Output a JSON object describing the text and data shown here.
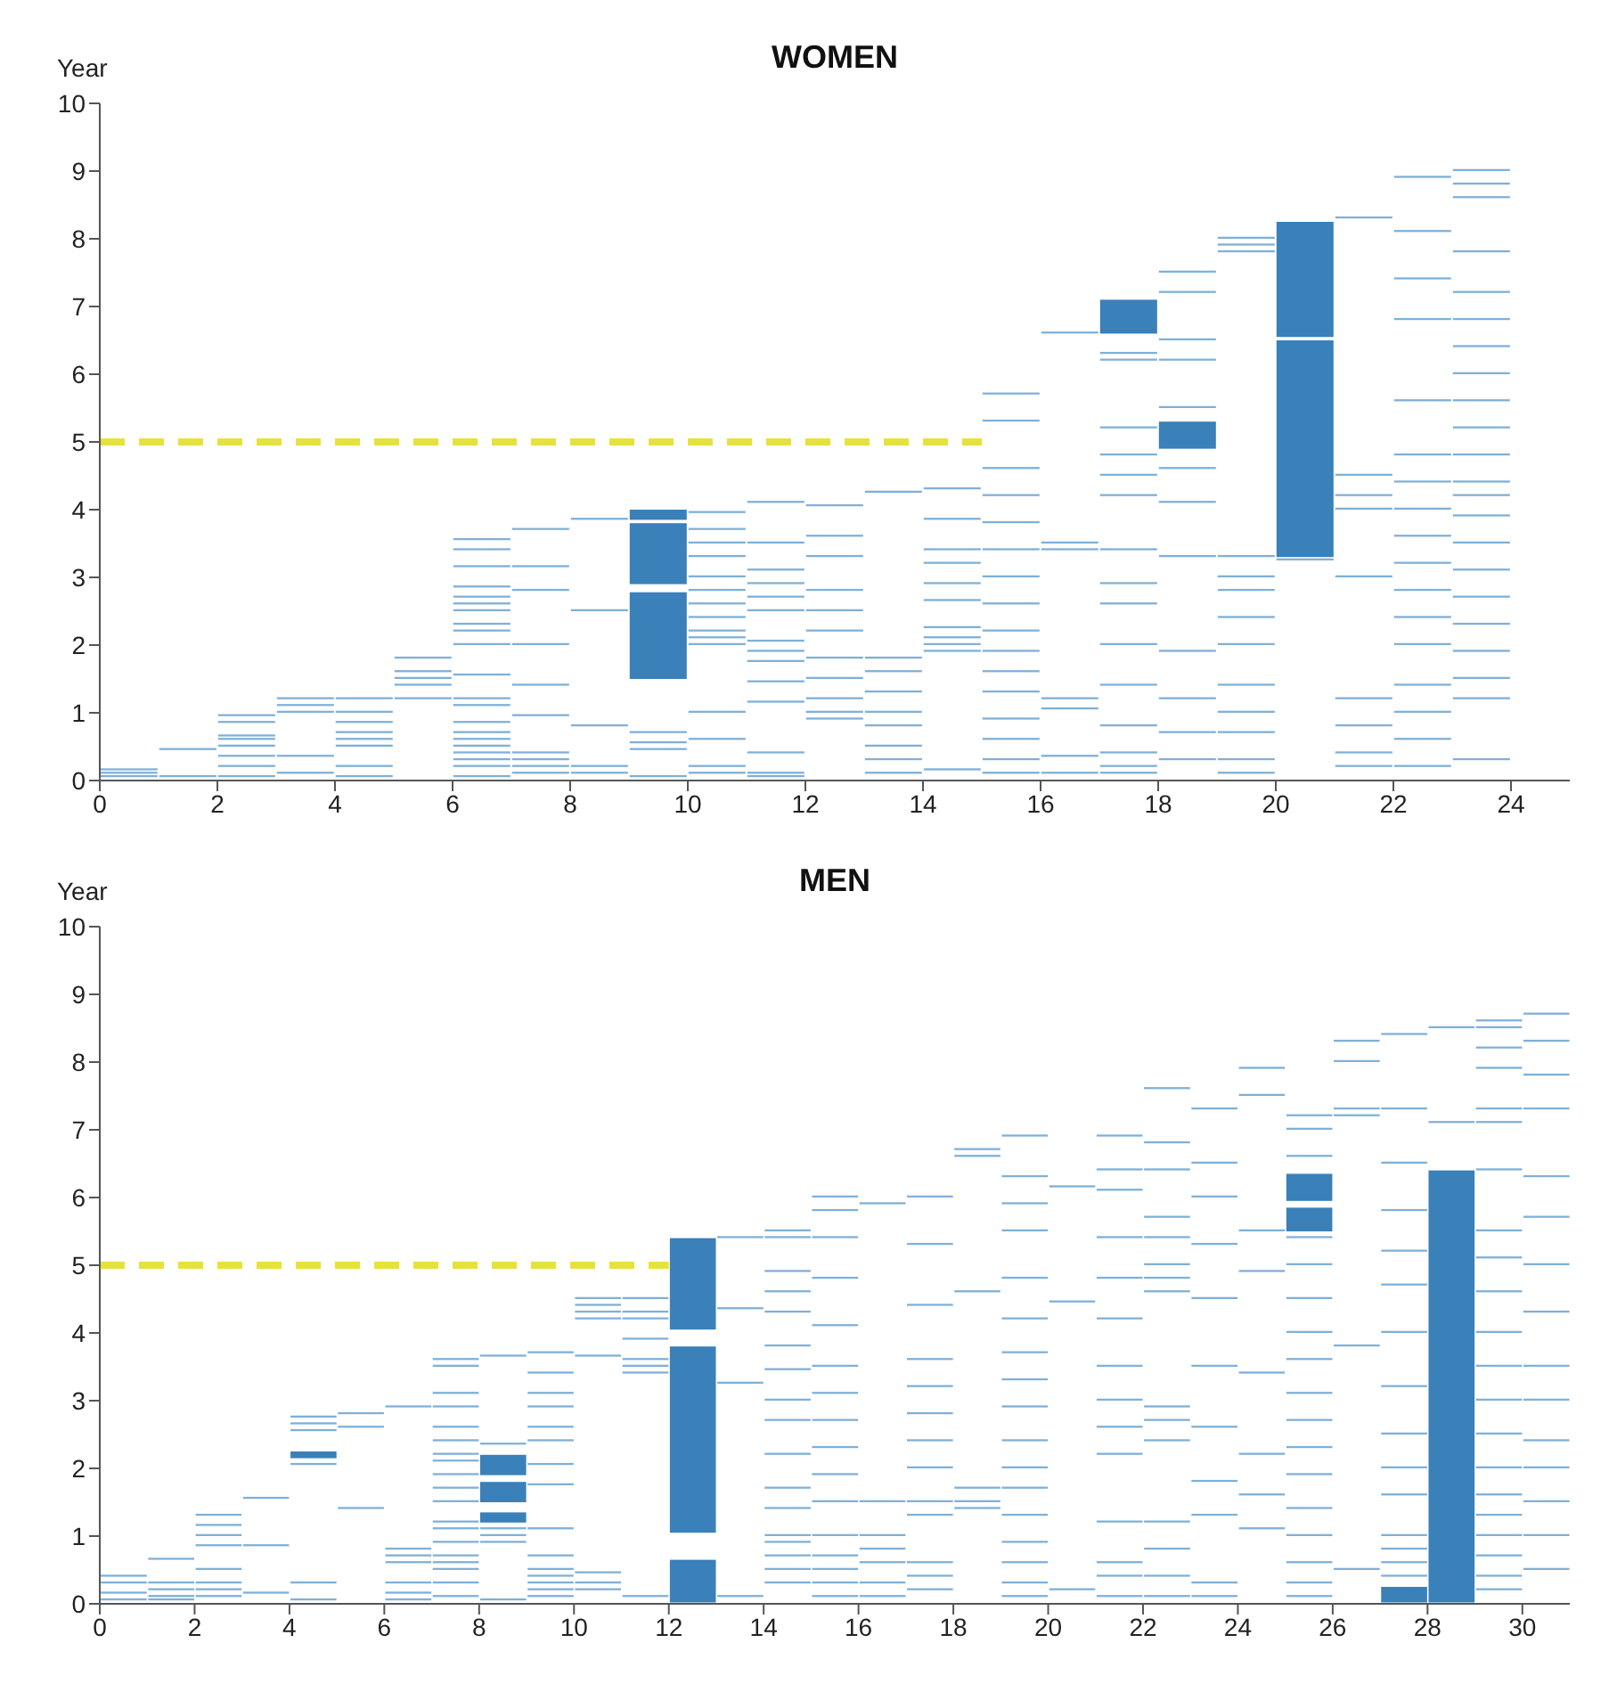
{
  "chart_data": [
    {
      "type": "bar",
      "title": "WOMEN",
      "ylabel": "Year",
      "xlim": [
        0,
        25
      ],
      "xticks": [
        0,
        2,
        4,
        6,
        8,
        10,
        12,
        14,
        16,
        18,
        20,
        22,
        24
      ],
      "ylim": [
        0,
        10
      ],
      "yticks": [
        0,
        1,
        2,
        3,
        4,
        5,
        6,
        7,
        8,
        9,
        10
      ],
      "series": [
        {
          "color": "#7fb0d8",
          "x": [
            0.5,
            1.5,
            2.5,
            3.5,
            4.5,
            5.5,
            6.5,
            7.5,
            8.5,
            9.5,
            10.5,
            11.5,
            12.5,
            13.5,
            14.5,
            15.5,
            16.5,
            17.5,
            18.5,
            19.5,
            20.5,
            21.5,
            22.5,
            23.5
          ],
          "base": [
            0.05,
            0.05,
            0.05,
            0.1,
            0.05,
            1.2,
            0.05,
            0.1,
            0.1,
            0.05,
            0.1,
            0.05,
            0.9,
            0.1,
            0.15,
            0.1,
            0.1,
            0.1,
            0.3,
            0.1,
            3.25,
            0.2,
            0.2,
            0.3
          ],
          "values": [
            0.03,
            0.03,
            0.03,
            0.03,
            0.03,
            0.03,
            0.03,
            0.03,
            0.03,
            0.03,
            0.03,
            0.03,
            0.03,
            0.03,
            0.03,
            0.03,
            0.03,
            0.03,
            0.03,
            0.03,
            0.03,
            0.03,
            0.03,
            0.03
          ]
        },
        {
          "color": "#7fb0d8",
          "x": [
            0.5,
            1.5,
            2.5,
            3.5,
            4.5,
            5.5,
            6.5,
            7.5,
            8.5,
            9.5,
            10.5,
            11.5,
            12.5,
            13.5,
            14.5,
            15.5,
            16.5,
            17.5,
            18.5,
            19.5,
            21.5,
            22.5,
            23.5
          ],
          "base": [
            0.1,
            0.45,
            0.2,
            0.35,
            0.2,
            1.4,
            0.2,
            0.2,
            0.2,
            0.45,
            0.2,
            0.1,
            1.0,
            0.3,
            1.9,
            0.3,
            0.35,
            0.2,
            0.7,
            0.3,
            0.4,
            0.6,
            1.2
          ],
          "values": [
            0.03,
            0.03,
            0.03,
            0.03,
            0.03,
            0.03,
            0.03,
            0.03,
            0.03,
            0.03,
            0.03,
            0.03,
            0.03,
            0.03,
            0.03,
            0.03,
            0.03,
            0.03,
            0.03,
            0.03,
            0.03,
            0.03,
            0.03
          ]
        },
        {
          "color": "#7fb0d8",
          "x": [
            0.5,
            2.5,
            3.5,
            4.5,
            5.5,
            6.5,
            7.5,
            8.5,
            9.5,
            10.5,
            11.5,
            12.5,
            13.5,
            14.5,
            15.5,
            16.5,
            17.5,
            18.5,
            19.5,
            21.5,
            22.5,
            23.5
          ],
          "base": [
            0.15,
            0.35,
            1.0,
            0.5,
            1.5,
            0.3,
            0.3,
            0.8,
            0.55,
            0.6,
            0.4,
            1.2,
            0.5,
            2.0,
            0.6,
            1.05,
            0.4,
            1.2,
            0.7,
            0.8,
            1.0,
            1.5
          ],
          "values": [
            0.03,
            0.03,
            0.03,
            0.03,
            0.03,
            0.03,
            0.03,
            0.03,
            0.03,
            0.03,
            0.03,
            0.03,
            0.03,
            0.03,
            0.03,
            0.03,
            0.03,
            0.03,
            0.03,
            0.03,
            0.03,
            0.03
          ]
        },
        {
          "color": "#7fb0d8",
          "x": [
            2.5,
            3.5,
            4.5,
            5.5,
            6.5,
            7.5,
            8.5,
            9.5,
            10.5,
            11.5,
            12.5,
            13.5,
            14.5,
            15.5,
            16.5,
            17.5,
            18.5,
            19.5,
            21.5,
            22.5,
            23.5
          ],
          "base": [
            0.5,
            1.1,
            0.6,
            1.6,
            0.4,
            0.4,
            2.5,
            0.7,
            1.0,
            1.15,
            1.5,
            0.8,
            2.1,
            0.9,
            1.2,
            0.8,
            1.9,
            1.0,
            1.2,
            1.4,
            1.9
          ],
          "values": [
            0.03,
            0.03,
            0.03,
            0.03,
            0.03,
            0.03,
            0.03,
            0.03,
            0.03,
            0.03,
            0.03,
            0.03,
            0.03,
            0.03,
            0.03,
            0.03,
            0.03,
            0.03,
            0.03,
            0.03,
            0.03
          ]
        },
        {
          "color": "#7fb0d8",
          "x": [
            2.5,
            3.5,
            4.5,
            5.5,
            6.5,
            7.5,
            8.5,
            10.5,
            11.5,
            12.5,
            13.5,
            14.5,
            15.5,
            16.5,
            17.5,
            18.5,
            19.5,
            21.5,
            22.5,
            23.5
          ],
          "base": [
            0.6,
            1.2,
            0.7,
            1.8,
            0.5,
            0.95,
            3.85,
            2.0,
            1.45,
            1.8,
            1.0,
            2.25,
            1.3,
            3.4,
            1.4,
            3.3,
            1.4,
            3.0,
            2.0,
            2.3
          ],
          "values": [
            0.03,
            0.03,
            0.03,
            0.03,
            0.03,
            0.03,
            0.03,
            0.03,
            0.03,
            0.03,
            0.03,
            0.03,
            0.03,
            0.03,
            0.03,
            0.03,
            0.03,
            0.03,
            0.03,
            0.03
          ]
        },
        {
          "color": "#7fb0d8",
          "x": [
            2.5,
            4.5,
            6.5,
            7.5,
            10.5,
            11.5,
            12.5,
            13.5,
            14.5,
            15.5,
            16.5,
            17.5,
            18.5,
            19.5,
            21.5,
            22.5,
            23.5
          ],
          "base": [
            0.65,
            0.85,
            0.6,
            1.4,
            2.1,
            1.75,
            2.2,
            1.3,
            2.65,
            1.6,
            3.5,
            2.0,
            4.1,
            2.0,
            4.0,
            2.4,
            2.7
          ],
          "values": [
            0.03,
            0.03,
            0.03,
            0.03,
            0.03,
            0.03,
            0.03,
            0.03,
            0.03,
            0.03,
            0.03,
            0.03,
            0.03,
            0.03,
            0.03,
            0.03,
            0.03
          ]
        },
        {
          "color": "#7fb0d8",
          "x": [
            2.5,
            4.5,
            6.5,
            7.5,
            10.5,
            11.5,
            12.5,
            13.5,
            14.5,
            15.5,
            16.5,
            17.5,
            18.5,
            19.5,
            21.5,
            22.5,
            23.5
          ],
          "base": [
            0.85,
            1.0,
            0.7,
            2.0,
            2.2,
            1.9,
            2.5,
            1.6,
            2.9,
            1.9,
            6.6,
            2.6,
            4.6,
            2.4,
            4.2,
            2.8,
            3.1
          ],
          "values": [
            0.03,
            0.03,
            0.03,
            0.03,
            0.03,
            0.03,
            0.03,
            0.03,
            0.03,
            0.03,
            0.03,
            0.03,
            0.03,
            0.03,
            0.03,
            0.03,
            0.03
          ]
        },
        {
          "color": "#7fb0d8",
          "x": [
            2.5,
            4.5,
            6.5,
            7.5,
            10.5,
            11.5,
            12.5,
            13.5,
            14.5,
            15.5,
            17.5,
            18.5,
            19.5,
            21.5,
            22.5,
            23.5
          ],
          "base": [
            0.95,
            1.2,
            0.85,
            2.8,
            2.4,
            2.05,
            2.8,
            1.8,
            3.2,
            2.2,
            2.9,
            5.5,
            2.8,
            4.5,
            3.2,
            3.5
          ],
          "values": [
            0.03,
            0.03,
            0.03,
            0.03,
            0.03,
            0.03,
            0.03,
            0.03,
            0.03,
            0.03,
            0.03,
            0.03,
            0.03,
            0.03,
            0.03,
            0.03
          ]
        },
        {
          "color": "#7fb0d8",
          "x": [
            6.5,
            7.5,
            10.5,
            11.5,
            12.5,
            13.5,
            14.5,
            15.5,
            17.5,
            18.5,
            19.5,
            21.5,
            22.5,
            23.5
          ],
          "base": [
            1.1,
            3.15,
            2.6,
            2.5,
            3.3,
            4.25,
            3.4,
            2.6,
            3.4,
            6.2,
            3.0,
            8.3,
            3.6,
            3.9
          ],
          "values": [
            0.03,
            0.03,
            0.03,
            0.03,
            0.03,
            0.03,
            0.03,
            0.03,
            0.03,
            0.03,
            0.03,
            0.03,
            0.03,
            0.03
          ]
        },
        {
          "color": "#7fb0d8",
          "x": [
            6.5,
            7.5,
            10.5,
            11.5,
            12.5,
            14.5,
            15.5,
            17.5,
            18.5,
            19.5,
            22.5,
            23.5
          ],
          "base": [
            1.2,
            3.7,
            2.8,
            2.7,
            3.6,
            3.85,
            3.0,
            4.2,
            6.5,
            3.3,
            4.0,
            4.2
          ],
          "values": [
            0.03,
            0.03,
            0.03,
            0.03,
            0.03,
            0.03,
            0.03,
            0.03,
            0.03,
            0.03,
            0.03,
            0.03
          ]
        },
        {
          "color": "#7fb0d8",
          "x": [
            6.5,
            10.5,
            11.5,
            12.5,
            14.5,
            15.5,
            17.5,
            18.5,
            19.5,
            22.5,
            23.5
          ],
          "base": [
            1.55,
            3.0,
            2.9,
            4.05,
            4.3,
            3.4,
            4.5,
            7.2,
            7.8,
            4.4,
            4.4
          ],
          "values": [
            0.03,
            0.03,
            0.03,
            0.03,
            0.03,
            0.03,
            0.03,
            0.03,
            0.03,
            0.03,
            0.03
          ]
        },
        {
          "color": "#7fb0d8",
          "x": [
            6.5,
            10.5,
            11.5,
            15.5,
            17.5,
            18.5,
            19.5,
            22.5,
            23.5
          ],
          "base": [
            2.0,
            3.3,
            3.1,
            3.8,
            4.8,
            7.5,
            7.9,
            4.8,
            4.8
          ],
          "values": [
            0.03,
            0.03,
            0.03,
            0.03,
            0.03,
            0.03,
            0.03,
            0.03,
            0.03
          ]
        },
        {
          "color": "#7fb0d8",
          "x": [
            6.5,
            10.5,
            11.5,
            15.5,
            17.5,
            19.5,
            22.5,
            23.5
          ],
          "base": [
            2.2,
            3.5,
            3.5,
            4.2,
            5.2,
            8.0,
            5.6,
            5.2
          ],
          "values": [
            0.03,
            0.03,
            0.03,
            0.03,
            0.03,
            0.03,
            0.03,
            0.03
          ]
        },
        {
          "color": "#7fb0d8",
          "x": [
            6.5,
            10.5,
            11.5,
            15.5,
            17.5,
            22.5,
            23.5
          ],
          "base": [
            2.3,
            3.7,
            4.1,
            4.6,
            6.2,
            6.8,
            5.6
          ],
          "values": [
            0.03,
            0.03,
            0.03,
            0.03,
            0.03,
            0.03,
            0.03
          ]
        },
        {
          "color": "#7fb0d8",
          "x": [
            6.5,
            10.5,
            15.5,
            17.5,
            22.5,
            23.5
          ],
          "base": [
            2.5,
            3.95,
            5.3,
            6.3,
            7.4,
            6.0
          ],
          "values": [
            0.03,
            0.03,
            0.03,
            0.03,
            0.03,
            0.03
          ]
        },
        {
          "color": "#7fb0d8",
          "x": [
            6.5,
            15.5,
            22.5,
            23.5
          ],
          "base": [
            2.6,
            5.7,
            8.1,
            6.4
          ],
          "values": [
            0.03,
            0.03,
            0.03,
            0.03
          ]
        },
        {
          "color": "#7fb0d8",
          "x": [
            6.5,
            22.5,
            23.5
          ],
          "base": [
            2.7,
            8.9,
            6.8
          ],
          "values": [
            0.03,
            0.03,
            0.03
          ]
        },
        {
          "color": "#7fb0d8",
          "x": [
            6.5,
            23.5
          ],
          "base": [
            2.85,
            7.2
          ],
          "values": [
            0.03,
            0.03
          ]
        },
        {
          "color": "#7fb0d8",
          "x": [
            6.5,
            23.5
          ],
          "base": [
            3.15,
            7.8
          ],
          "values": [
            0.03,
            0.03
          ]
        },
        {
          "color": "#7fb0d8",
          "x": [
            6.5,
            23.5
          ],
          "base": [
            3.4,
            8.6
          ],
          "values": [
            0.03,
            0.03
          ]
        },
        {
          "color": "#7fb0d8",
          "x": [
            6.5,
            23.5
          ],
          "base": [
            3.55,
            8.8
          ],
          "values": [
            0.03,
            0.03
          ]
        },
        {
          "color": "#7fb0d8",
          "x": [
            23.5
          ],
          "base": [
            9.0
          ],
          "values": [
            0.03
          ]
        },
        {
          "color": "#3a80b9",
          "x": [
            9.5,
            17.5,
            18.5,
            20.5
          ],
          "base": [
            1.5,
            6.6,
            4.9,
            3.3
          ],
          "values": [
            1.28,
            0.5,
            0.4,
            3.2
          ]
        },
        {
          "color": "#3a80b9",
          "x": [
            9.5,
            20.5
          ],
          "base": [
            2.9,
            6.55
          ],
          "values": [
            0.9,
            1.7
          ]
        },
        {
          "color": "#3a80b9",
          "x": [
            9.5
          ],
          "base": [
            3.85
          ],
          "values": [
            0.15
          ]
        },
        {
          "type": "line",
          "color": "#e6e23c",
          "line_style": "dashed",
          "marker": "none",
          "x": [
            0,
            15
          ],
          "values": [
            5,
            5
          ]
        }
      ]
    },
    {
      "type": "bar",
      "title": "MEN",
      "ylabel": "Year",
      "xlim": [
        0,
        31
      ],
      "xticks": [
        0,
        2,
        4,
        6,
        8,
        10,
        12,
        14,
        16,
        18,
        20,
        22,
        24,
        26,
        28,
        30
      ],
      "ylim": [
        0,
        10
      ],
      "yticks": [
        0,
        1,
        2,
        3,
        4,
        5,
        6,
        7,
        8,
        9,
        10
      ],
      "series": [
        {
          "color": "#7fb0d8",
          "x": [
            0.5,
            1.5,
            2.5,
            3.5,
            4.5,
            5.5,
            6.5,
            7.5,
            8.5,
            9.5,
            10.5,
            11.5,
            13.5,
            14.5,
            15.5,
            16.5,
            17.5,
            18.5,
            19.5,
            20.5,
            21.5,
            22.5,
            23.5,
            24.5,
            25.5,
            26.5,
            27.5,
            28.5,
            29.5,
            30.5
          ],
          "base": [
            0.05,
            0.05,
            0.1,
            0.15,
            0.05,
            1.4,
            0.05,
            0.1,
            0.05,
            0.1,
            0.2,
            0.1,
            0.1,
            0.3,
            0.1,
            0.1,
            0.2,
            1.4,
            0.1,
            0.2,
            0.1,
            0.1,
            0.1,
            1.1,
            0.1,
            0.5,
            0.4,
            7.1,
            0.2,
            0.5
          ],
          "values": [
            0.03,
            0.03,
            0.03,
            0.03,
            0.03,
            0.03,
            0.03,
            0.03,
            0.03,
            0.03,
            0.03,
            0.03,
            0.03,
            0.03,
            0.03,
            0.03,
            0.03,
            0.03,
            0.03,
            0.03,
            0.03,
            0.03,
            0.03,
            0.03,
            0.03,
            0.03,
            0.03,
            0.03,
            0.03,
            0.03
          ]
        },
        {
          "color": "#7fb0d8",
          "x": [
            0.5,
            1.5,
            2.5,
            3.5,
            4.5,
            5.5,
            6.5,
            7.5,
            8.5,
            9.5,
            10.5,
            11.5,
            13.5,
            14.5,
            15.5,
            16.5,
            17.5,
            18.5,
            19.5,
            20.5,
            21.5,
            22.5,
            23.5,
            24.5,
            25.5,
            26.5,
            27.5,
            28.5,
            29.5,
            30.5
          ],
          "base": [
            0.15,
            0.1,
            0.2,
            0.85,
            0.3,
            2.6,
            0.15,
            0.3,
            0.9,
            0.2,
            0.3,
            3.4,
            3.25,
            0.5,
            0.3,
            0.3,
            0.4,
            1.5,
            0.3,
            4.45,
            0.4,
            0.4,
            0.3,
            1.6,
            0.3,
            3.8,
            0.6,
            8.5,
            0.4,
            1.0
          ],
          "values": [
            0.03,
            0.03,
            0.03,
            0.03,
            0.03,
            0.03,
            0.03,
            0.03,
            0.03,
            0.03,
            0.03,
            0.03,
            0.03,
            0.03,
            0.03,
            0.03,
            0.03,
            0.03,
            0.03,
            0.03,
            0.03,
            0.03,
            0.03,
            0.03,
            0.03,
            0.03,
            0.03,
            0.03,
            0.03,
            0.03
          ]
        },
        {
          "color": "#7fb0d8",
          "x": [
            0.5,
            1.5,
            2.5,
            3.5,
            4.5,
            5.5,
            6.5,
            7.5,
            8.5,
            9.5,
            10.5,
            11.5,
            13.5,
            14.5,
            15.5,
            16.5,
            17.5,
            18.5,
            19.5,
            20.5,
            21.5,
            22.5,
            23.5,
            24.5,
            25.5,
            26.5,
            27.5,
            29.5,
            30.5
          ],
          "base": [
            0.3,
            0.2,
            0.3,
            1.55,
            2.05,
            2.8,
            0.3,
            0.5,
            1.0,
            0.3,
            0.45,
            3.5,
            4.35,
            0.7,
            0.5,
            0.6,
            0.6,
            1.7,
            0.6,
            6.15,
            0.6,
            0.8,
            1.3,
            2.2,
            0.6,
            7.2,
            0.8,
            0.7,
            1.5
          ],
          "values": [
            0.03,
            0.03,
            0.03,
            0.03,
            0.03,
            0.03,
            0.03,
            0.03,
            0.03,
            0.03,
            0.03,
            0.03,
            0.03,
            0.03,
            0.03,
            0.03,
            0.03,
            0.03,
            0.03,
            0.03,
            0.03,
            0.03,
            0.03,
            0.03,
            0.03,
            0.03,
            0.03,
            0.03,
            0.03
          ]
        },
        {
          "color": "#7fb0d8",
          "x": [
            0.5,
            1.5,
            2.5,
            4.5,
            6.5,
            7.5,
            8.5,
            9.5,
            10.5,
            11.5,
            13.5,
            14.5,
            15.5,
            16.5,
            17.5,
            18.5,
            19.5,
            21.5,
            22.5,
            23.5,
            24.5,
            25.5,
            26.5,
            27.5,
            29.5,
            30.5
          ],
          "base": [
            0.4,
            0.3,
            0.5,
            2.55,
            0.6,
            0.6,
            1.1,
            0.4,
            3.65,
            3.6,
            5.4,
            0.9,
            0.7,
            0.8,
            1.3,
            4.6,
            0.9,
            1.2,
            1.2,
            1.8,
            3.4,
            1.0,
            7.3,
            1.0,
            1.0,
            2.0
          ],
          "values": [
            0.03,
            0.03,
            0.03,
            0.03,
            0.03,
            0.03,
            0.03,
            0.03,
            0.03,
            0.03,
            0.03,
            0.03,
            0.03,
            0.03,
            0.03,
            0.03,
            0.03,
            0.03,
            0.03,
            0.03,
            0.03,
            0.03,
            0.03,
            0.03,
            0.03,
            0.03
          ]
        },
        {
          "color": "#7fb0d8",
          "x": [
            1.5,
            2.5,
            4.5,
            6.5,
            7.5,
            8.5,
            9.5,
            10.5,
            11.5,
            14.5,
            15.5,
            16.5,
            17.5,
            18.5,
            19.5,
            21.5,
            22.5,
            23.5,
            24.5,
            25.5,
            26.5,
            27.5,
            29.5,
            30.5
          ],
          "base": [
            0.65,
            0.85,
            2.65,
            0.7,
            0.7,
            2.35,
            0.5,
            4.2,
            3.9,
            1.0,
            1.0,
            1.0,
            1.5,
            6.6,
            1.3,
            2.2,
            2.4,
            2.6,
            4.9,
            1.4,
            8.0,
            1.6,
            1.3,
            2.4
          ],
          "values": [
            0.03,
            0.03,
            0.03,
            0.03,
            0.03,
            0.03,
            0.03,
            0.03,
            0.03,
            0.03,
            0.03,
            0.03,
            0.03,
            0.03,
            0.03,
            0.03,
            0.03,
            0.03,
            0.03,
            0.03,
            0.03,
            0.03,
            0.03,
            0.03
          ]
        },
        {
          "color": "#7fb0d8",
          "x": [
            2.5,
            4.5,
            6.5,
            7.5,
            8.5,
            9.5,
            10.5,
            11.5,
            14.5,
            15.5,
            16.5,
            17.5,
            18.5,
            19.5,
            21.5,
            22.5,
            23.5,
            24.5,
            25.5,
            26.5,
            27.5,
            29.5,
            30.5
          ],
          "base": [
            1.0,
            2.75,
            0.8,
            0.9,
            3.65,
            0.7,
            4.3,
            4.2,
            1.4,
            1.5,
            1.5,
            2.0,
            6.7,
            1.7,
            2.6,
            2.7,
            3.5,
            5.5,
            1.9,
            8.3,
            2.0,
            1.6,
            3.0
          ],
          "values": [
            0.03,
            0.03,
            0.03,
            0.03,
            0.03,
            0.03,
            0.03,
            0.03,
            0.03,
            0.03,
            0.03,
            0.03,
            0.03,
            0.03,
            0.03,
            0.03,
            0.03,
            0.03,
            0.03,
            0.03,
            0.03,
            0.03,
            0.03
          ]
        },
        {
          "color": "#7fb0d8",
          "x": [
            2.5,
            6.5,
            7.5,
            9.5,
            10.5,
            11.5,
            14.5,
            15.5,
            16.5,
            17.5,
            19.5,
            21.5,
            22.5,
            23.5,
            24.5,
            25.5,
            27.5,
            29.5,
            30.5
          ],
          "base": [
            1.15,
            2.9,
            1.1,
            1.1,
            4.4,
            4.3,
            1.7,
            1.9,
            5.9,
            2.4,
            2.0,
            3.0,
            2.9,
            4.5,
            7.5,
            2.3,
            2.5,
            2.0,
            3.5
          ],
          "values": [
            0.03,
            0.03,
            0.03,
            0.03,
            0.03,
            0.03,
            0.03,
            0.03,
            0.03,
            0.03,
            0.03,
            0.03,
            0.03,
            0.03,
            0.03,
            0.03,
            0.03,
            0.03,
            0.03
          ]
        },
        {
          "color": "#7fb0d8",
          "x": [
            2.5,
            7.5,
            9.5,
            10.5,
            11.5,
            14.5,
            15.5,
            17.5,
            19.5,
            21.5,
            22.5,
            23.5,
            24.5,
            25.5,
            27.5,
            29.5,
            30.5
          ],
          "base": [
            1.3,
            1.2,
            1.75,
            4.5,
            4.5,
            2.2,
            2.3,
            2.8,
            2.4,
            3.5,
            4.6,
            5.3,
            7.9,
            2.7,
            3.2,
            2.5,
            4.3
          ],
          "values": [
            0.03,
            0.03,
            0.03,
            0.03,
            0.03,
            0.03,
            0.03,
            0.03,
            0.03,
            0.03,
            0.03,
            0.03,
            0.03,
            0.03,
            0.03,
            0.03,
            0.03
          ]
        },
        {
          "color": "#7fb0d8",
          "x": [
            7.5,
            9.5,
            14.5,
            15.5,
            17.5,
            19.5,
            21.5,
            22.5,
            23.5,
            25.5,
            27.5,
            29.5,
            30.5
          ],
          "base": [
            1.5,
            2.05,
            2.7,
            2.7,
            3.2,
            2.9,
            4.2,
            4.8,
            6.0,
            3.1,
            4.0,
            3.0,
            5.0
          ],
          "values": [
            0.03,
            0.03,
            0.03,
            0.03,
            0.03,
            0.03,
            0.03,
            0.03,
            0.03,
            0.03,
            0.03,
            0.03,
            0.03
          ]
        },
        {
          "color": "#7fb0d8",
          "x": [
            7.5,
            9.5,
            14.5,
            15.5,
            17.5,
            19.5,
            21.5,
            22.5,
            23.5,
            25.5,
            27.5,
            29.5,
            30.5
          ],
          "base": [
            1.7,
            2.4,
            3.0,
            3.1,
            3.6,
            3.3,
            4.8,
            5.0,
            6.5,
            3.6,
            4.7,
            3.5,
            5.7
          ],
          "values": [
            0.03,
            0.03,
            0.03,
            0.03,
            0.03,
            0.03,
            0.03,
            0.03,
            0.03,
            0.03,
            0.03,
            0.03,
            0.03
          ]
        },
        {
          "color": "#7fb0d8",
          "x": [
            7.5,
            9.5,
            14.5,
            15.5,
            17.5,
            19.5,
            21.5,
            22.5,
            23.5,
            25.5,
            27.5,
            29.5,
            30.5
          ],
          "base": [
            1.9,
            2.6,
            3.45,
            3.5,
            4.4,
            3.7,
            5.4,
            5.4,
            7.3,
            4.0,
            5.2,
            4.0,
            6.3
          ],
          "values": [
            0.03,
            0.03,
            0.03,
            0.03,
            0.03,
            0.03,
            0.03,
            0.03,
            0.03,
            0.03,
            0.03,
            0.03,
            0.03
          ]
        },
        {
          "color": "#7fb0d8",
          "x": [
            7.5,
            9.5,
            14.5,
            15.5,
            17.5,
            19.5,
            21.5,
            22.5,
            25.5,
            27.5,
            29.5,
            30.5
          ],
          "base": [
            2.1,
            2.9,
            3.8,
            4.1,
            5.3,
            4.2,
            6.1,
            5.7,
            4.5,
            5.8,
            4.6,
            7.3
          ],
          "values": [
            0.03,
            0.03,
            0.03,
            0.03,
            0.03,
            0.03,
            0.03,
            0.03,
            0.03,
            0.03,
            0.03,
            0.03
          ]
        },
        {
          "color": "#7fb0d8",
          "x": [
            7.5,
            9.5,
            14.5,
            15.5,
            17.5,
            19.5,
            21.5,
            22.5,
            25.5,
            27.5,
            29.5,
            30.5
          ],
          "base": [
            2.2,
            3.1,
            4.3,
            4.8,
            6.0,
            4.8,
            6.4,
            6.4,
            5.0,
            6.5,
            5.1,
            7.8
          ],
          "values": [
            0.03,
            0.03,
            0.03,
            0.03,
            0.03,
            0.03,
            0.03,
            0.03,
            0.03,
            0.03,
            0.03,
            0.03
          ]
        },
        {
          "color": "#7fb0d8",
          "x": [
            7.5,
            9.5,
            14.5,
            15.5,
            19.5,
            21.5,
            22.5,
            25.5,
            27.5,
            29.5,
            30.5
          ],
          "base": [
            2.4,
            3.4,
            4.6,
            5.4,
            5.5,
            6.9,
            6.8,
            5.4,
            7.3,
            5.5,
            8.3
          ],
          "values": [
            0.03,
            0.03,
            0.03,
            0.03,
            0.03,
            0.03,
            0.03,
            0.03,
            0.03,
            0.03,
            0.03
          ]
        },
        {
          "color": "#7fb0d8",
          "x": [
            7.5,
            9.5,
            14.5,
            15.5,
            19.5,
            22.5,
            25.5,
            27.5,
            29.5,
            30.5
          ],
          "base": [
            2.6,
            3.7,
            4.9,
            5.8,
            5.9,
            7.6,
            6.6,
            8.4,
            6.4,
            8.7
          ],
          "values": [
            0.03,
            0.03,
            0.03,
            0.03,
            0.03,
            0.03,
            0.03,
            0.03,
            0.03,
            0.03
          ]
        },
        {
          "color": "#7fb0d8",
          "x": [
            7.5,
            14.5,
            15.5,
            19.5,
            25.5,
            29.5
          ],
          "base": [
            2.9,
            5.4,
            6.0,
            6.3,
            7.0,
            7.1
          ],
          "values": [
            0.03,
            0.03,
            0.03,
            0.03,
            0.03,
            0.03
          ]
        },
        {
          "color": "#7fb0d8",
          "x": [
            7.5,
            14.5,
            19.5,
            25.5,
            29.5
          ],
          "base": [
            3.1,
            5.5,
            6.9,
            7.2,
            7.3
          ],
          "values": [
            0.03,
            0.03,
            0.03,
            0.03,
            0.03
          ]
        },
        {
          "color": "#7fb0d8",
          "x": [
            7.5,
            29.5
          ],
          "base": [
            3.5,
            7.9
          ],
          "values": [
            0.03,
            0.03
          ]
        },
        {
          "color": "#7fb0d8",
          "x": [
            7.5,
            29.5
          ],
          "base": [
            3.6,
            8.2
          ],
          "values": [
            0.03,
            0.03
          ]
        },
        {
          "color": "#7fb0d8",
          "x": [
            29.5
          ],
          "base": [
            8.5
          ],
          "values": [
            0.03
          ]
        },
        {
          "color": "#7fb0d8",
          "x": [
            29.5
          ],
          "base": [
            8.6
          ],
          "values": [
            0.03
          ]
        },
        {
          "color": "#3a80b9",
          "x": [
            4.5,
            8.5,
            12.5,
            25.5,
            27.5,
            28.5
          ],
          "base": [
            2.15,
            1.2,
            0.02,
            5.5,
            0.02,
            0.02
          ],
          "values": [
            0.1,
            0.15,
            0.63,
            0.35,
            0.23,
            6.38
          ]
        },
        {
          "color": "#3a80b9",
          "x": [
            8.5,
            12.5,
            25.5
          ],
          "base": [
            1.5,
            1.05,
            5.95
          ],
          "values": [
            0.3,
            2.75,
            0.4
          ]
        },
        {
          "color": "#3a80b9",
          "x": [
            8.5,
            12.5
          ],
          "base": [
            1.9,
            4.05
          ],
          "values": [
            0.3,
            1.35
          ]
        },
        {
          "type": "line",
          "color": "#e6e23c",
          "line_style": "dashed",
          "marker": "none",
          "x": [
            0,
            12
          ],
          "values": [
            5,
            5
          ]
        }
      ]
    }
  ]
}
